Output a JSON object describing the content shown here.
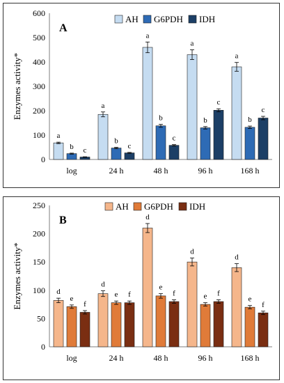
{
  "chart_data": [
    {
      "type": "bar",
      "panel_label": "A",
      "ylabel": "Enzymes activity*",
      "ylim": [
        0,
        600
      ],
      "yticks": [
        0,
        100,
        200,
        300,
        400,
        500,
        600
      ],
      "categories": [
        "log",
        "24 h",
        "48 h",
        "96 h",
        "168 h"
      ],
      "legend_position": "top-center",
      "grid": false,
      "series": [
        {
          "name": "AH",
          "color": "#c5dcf1",
          "values": [
            68,
            185,
            460,
            430,
            380
          ],
          "errors": [
            3,
            10,
            22,
            20,
            18
          ],
          "letters": [
            "a",
            "a",
            "a",
            "a",
            "a"
          ]
        },
        {
          "name": "G6PDH",
          "color": "#2e6bb5",
          "values": [
            24,
            47,
            138,
            130,
            132
          ],
          "errors": [
            2,
            3,
            6,
            5,
            5
          ],
          "letters": [
            "b",
            "b",
            "b",
            "b",
            "b"
          ]
        },
        {
          "name": "IDH",
          "color": "#1c3f66",
          "values": [
            10,
            27,
            58,
            202,
            170
          ],
          "errors": [
            1,
            2,
            3,
            6,
            7
          ],
          "letters": [
            "c",
            "c",
            "c",
            "c",
            "c"
          ]
        }
      ]
    },
    {
      "type": "bar",
      "panel_label": "B",
      "ylabel": "Enzymes activity*",
      "ylim": [
        0,
        250
      ],
      "yticks": [
        0,
        50,
        100,
        150,
        200,
        250
      ],
      "categories": [
        "log",
        "24 h",
        "48 h",
        "96 h",
        "168 h"
      ],
      "legend_position": "top-center",
      "grid": false,
      "series": [
        {
          "name": "AH",
          "color": "#f5b68b",
          "values": [
            82,
            94,
            210,
            150,
            140
          ],
          "errors": [
            4,
            5,
            8,
            7,
            7
          ],
          "letters": [
            "d",
            "d",
            "d",
            "d",
            "d"
          ]
        },
        {
          "name": "G6PDH",
          "color": "#e07b39",
          "values": [
            71,
            78,
            90,
            75,
            70
          ],
          "errors": [
            3,
            3,
            4,
            3,
            3
          ],
          "letters": [
            "e",
            "e",
            "e",
            "e",
            "e"
          ]
        },
        {
          "name": "IDH",
          "color": "#7a2e12",
          "values": [
            61,
            78,
            80,
            80,
            60
          ],
          "errors": [
            3,
            3,
            3,
            3,
            3
          ],
          "letters": [
            "f",
            "f",
            "f",
            "f",
            "f"
          ]
        }
      ]
    }
  ]
}
